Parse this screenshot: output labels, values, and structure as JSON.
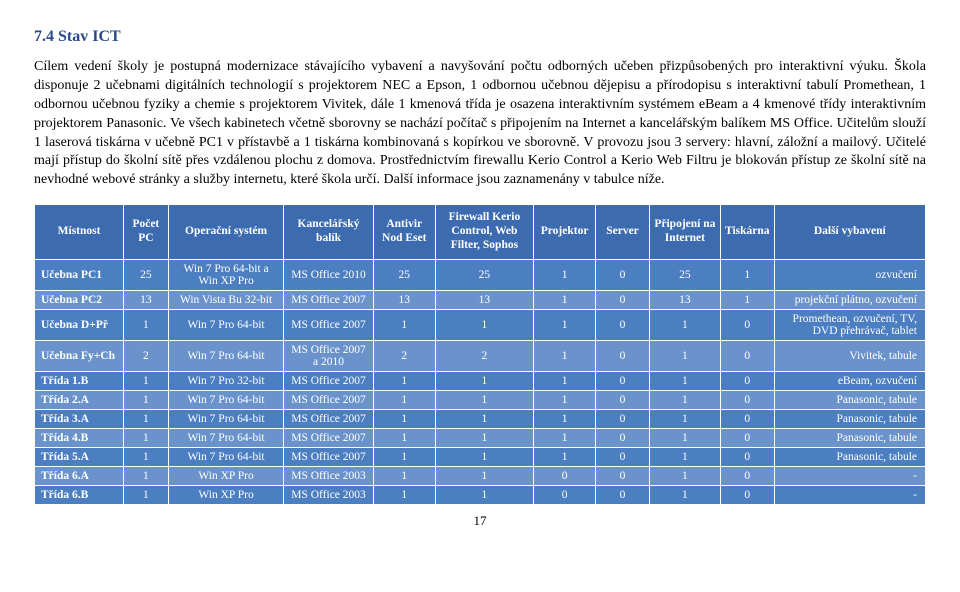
{
  "heading": "7.4 Stav ICT",
  "paragraph": "Cílem vedení školy je postupná modernizace stávajícího vybavení a navyšování počtu odborných učeben přizpůsobených pro interaktivní výuku. Škola disponuje 2 učebnami digitálních technologií s projektorem NEC a Epson, 1 odbornou učebnou dějepisu a přírodopisu s interaktivní tabulí Promethean, 1 odbornou učebnou fyziky a chemie s projektorem Vivitek, dále 1 kmenová třída je osazena interaktivním systémem eBeam a 4 kmenové třídy interaktivním projektorem Panasonic. Ve všech kabinetech včetně sborovny se nachází počítač s připojením na Internet a kancelářským balíkem MS Office. Učitelům slouží 1 laserová tiskárna v učebně PC1 v přístavbě a 1 tiskárna kombinovaná s kopírkou ve sborovně. V provozu jsou 3 servery: hlavní, záložní a mailový. Učitelé mají přístup do školní sítě přes vzdálenou plochu z domova. Prostřednictvím firewallu Kerio Control a Kerio Web Filtru je blokován přístup ze školní sítě na nevhodné webové stránky a služby internetu, které škola určí. Další informace jsou zaznamenány v tabulce níže.",
  "columns": [
    "Místnost",
    "Počet PC",
    "Operační systém",
    "Kancelářský balík",
    "Antivir Nod Eset",
    "Firewall Kerio Control, Web Filter, Sophos",
    "Projektor",
    "Server",
    "Připojení na Internet",
    "Tiskárna",
    "Další vybavení"
  ],
  "rows": [
    {
      "name": "Učebna PC1",
      "pc": "25",
      "os": "Win 7 Pro 64-bit a Win XP Pro",
      "office": "MS Office 2010",
      "av": "25",
      "fw": "25",
      "proj": "1",
      "srv": "0",
      "net": "25",
      "prn": "1",
      "other": "ozvučení"
    },
    {
      "name": "Učebna PC2",
      "pc": "13",
      "os": "Win Vista Bu 32-bit",
      "office": "MS Office 2007",
      "av": "13",
      "fw": "13",
      "proj": "1",
      "srv": "0",
      "net": "13",
      "prn": "1",
      "other": "projekční plátno, ozvučení"
    },
    {
      "name": "Učebna D+Př",
      "pc": "1",
      "os": "Win 7 Pro 64-bit",
      "office": "MS Office 2007",
      "av": "1",
      "fw": "1",
      "proj": "1",
      "srv": "0",
      "net": "1",
      "prn": "0",
      "other": "Promethean, ozvučení, TV, DVD přehrávač, tablet"
    },
    {
      "name": "Učebna Fy+Ch",
      "pc": "2",
      "os": "Win 7 Pro 64-bit",
      "office": "MS Office 2007 a 2010",
      "av": "2",
      "fw": "2",
      "proj": "1",
      "srv": "0",
      "net": "1",
      "prn": "0",
      "other": "Vivitek, tabule"
    },
    {
      "name": "Třída 1.B",
      "pc": "1",
      "os": "Win 7 Pro 32-bit",
      "office": "MS Office 2007",
      "av": "1",
      "fw": "1",
      "proj": "1",
      "srv": "0",
      "net": "1",
      "prn": "0",
      "other": "eBeam, ozvučení"
    },
    {
      "name": "Třída 2.A",
      "pc": "1",
      "os": "Win 7 Pro 64-bit",
      "office": "MS Office 2007",
      "av": "1",
      "fw": "1",
      "proj": "1",
      "srv": "0",
      "net": "1",
      "prn": "0",
      "other": "Panasonic, tabule"
    },
    {
      "name": "Třída 3.A",
      "pc": "1",
      "os": "Win 7 Pro 64-bit",
      "office": "MS Office 2007",
      "av": "1",
      "fw": "1",
      "proj": "1",
      "srv": "0",
      "net": "1",
      "prn": "0",
      "other": "Panasonic, tabule"
    },
    {
      "name": "Třída 4.B",
      "pc": "1",
      "os": "Win 7 Pro 64-bit",
      "office": "MS Office 2007",
      "av": "1",
      "fw": "1",
      "proj": "1",
      "srv": "0",
      "net": "1",
      "prn": "0",
      "other": "Panasonic, tabule"
    },
    {
      "name": "Třída 5.A",
      "pc": "1",
      "os": "Win 7 Pro 64-bit",
      "office": "MS Office 2007",
      "av": "1",
      "fw": "1",
      "proj": "1",
      "srv": "0",
      "net": "1",
      "prn": "0",
      "other": "Panasonic, tabule"
    },
    {
      "name": "Třída 6.A",
      "pc": "1",
      "os": "Win XP Pro",
      "office": "MS Office 2003",
      "av": "1",
      "fw": "1",
      "proj": "0",
      "srv": "0",
      "net": "1",
      "prn": "0",
      "other": "-"
    },
    {
      "name": "Třída 6.B",
      "pc": "1",
      "os": "Win XP Pro",
      "office": "MS Office 2003",
      "av": "1",
      "fw": "1",
      "proj": "0",
      "srv": "0",
      "net": "1",
      "prn": "0",
      "other": "-"
    }
  ],
  "page_number": "17",
  "colors": {
    "heading": "#2a4a8a",
    "header_bg": "#3c6bb0",
    "row_a": "#4c7ec2",
    "row_b": "#6a93cc",
    "cell_text": "#ffffff"
  },
  "col_widths_pct": [
    10,
    5,
    13,
    10,
    7,
    11,
    7,
    6,
    8,
    6,
    17
  ]
}
